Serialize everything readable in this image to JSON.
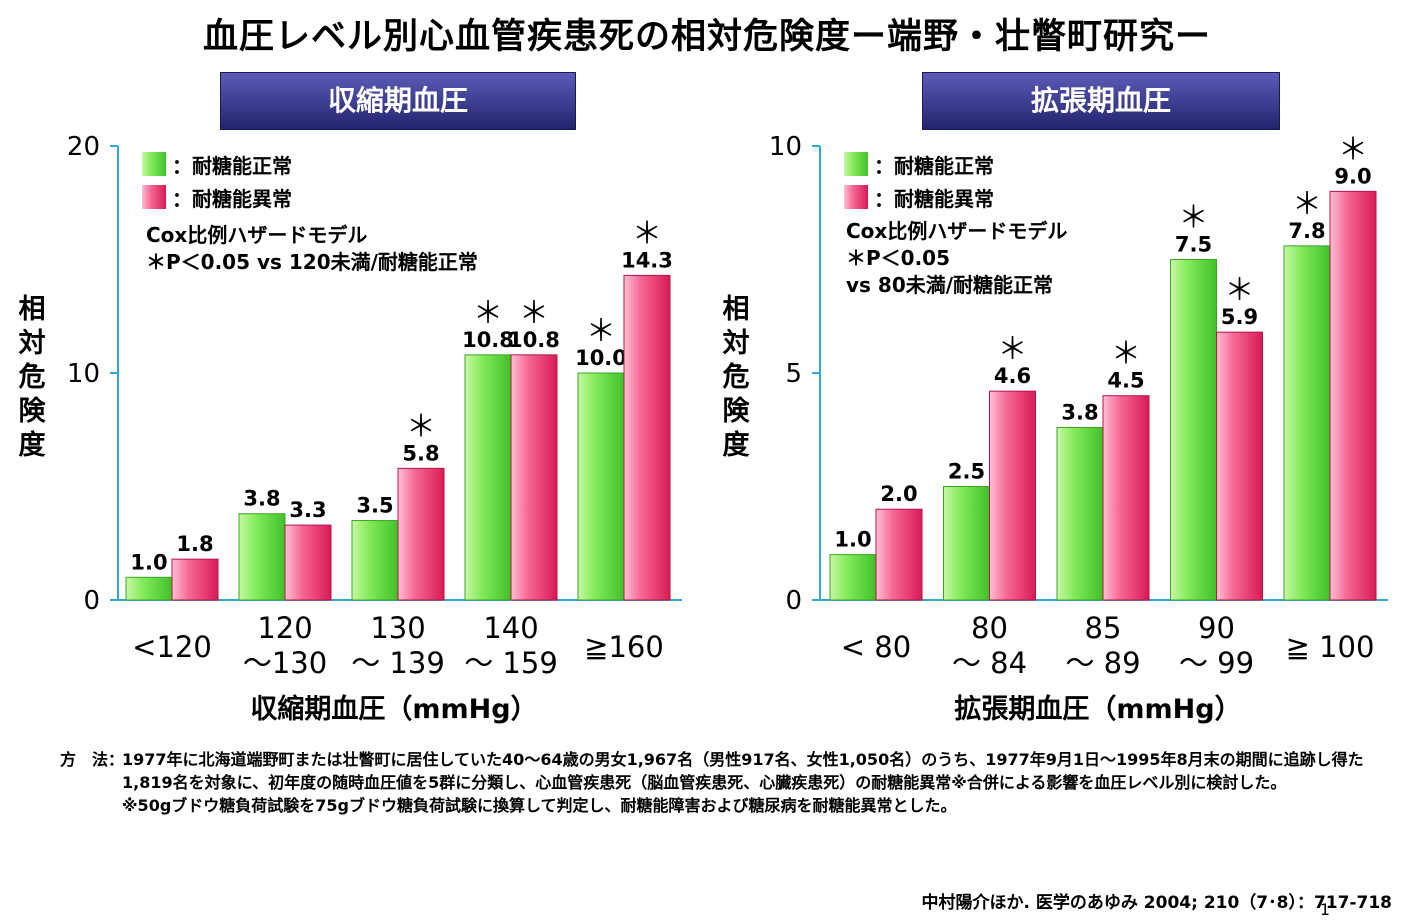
{
  "title": "血圧レベル別心血管疾患死の相対危険度ー端野・壮瞥町研究ー",
  "legend_common": {
    "normal": "：耐糖能正常",
    "abnormal": "：耐糖能異常"
  },
  "colors": {
    "normal": "#7de35a",
    "abnormal": "#f0517f",
    "axis": "#2fa8e0",
    "header": "#2e2f86"
  },
  "chart_data": [
    {
      "type": "bar",
      "header": "収縮期血圧",
      "xlabel": "収縮期血圧（mmHg）",
      "ylabel": "相対危険度",
      "ylim": [
        0,
        20
      ],
      "yticks": [
        "0",
        "10",
        "20"
      ],
      "note_lines": [
        "Cox比例ハザードモデル",
        "＊P＜0.05 vs 120未満/耐糖能正常"
      ],
      "categories": [
        [
          "<120"
        ],
        [
          "120",
          "～130"
        ],
        [
          "130",
          "～ 139"
        ],
        [
          "140",
          "～ 159"
        ],
        [
          "≧160"
        ]
      ],
      "series": [
        {
          "name": "耐糖能正常",
          "values": [
            1.0,
            3.8,
            3.5,
            10.8,
            10.0
          ],
          "labels": [
            "1.0",
            "3.8",
            "3.5",
            "10.8",
            "10.0"
          ],
          "sig": [
            false,
            false,
            false,
            true,
            true
          ]
        },
        {
          "name": "耐糖能異常",
          "values": [
            1.8,
            3.3,
            5.8,
            10.8,
            14.3
          ],
          "labels": [
            "1.8",
            "3.3",
            "5.8",
            "10.8",
            "14.3"
          ],
          "sig": [
            false,
            false,
            true,
            true,
            true
          ]
        }
      ]
    },
    {
      "type": "bar",
      "header": "拡張期血圧",
      "xlabel": "拡張期血圧（mmHg）",
      "ylabel": "相対危険度",
      "ylim": [
        0,
        10
      ],
      "yticks": [
        "0",
        "5",
        "10"
      ],
      "note_lines": [
        "Cox比例ハザードモデル",
        "＊P＜0.05",
        "vs 80未満/耐糖能正常"
      ],
      "categories": [
        [
          "< 80"
        ],
        [
          "80",
          "～ 84"
        ],
        [
          "85",
          "～ 89"
        ],
        [
          "90",
          "～ 99"
        ],
        [
          "≧ 100"
        ]
      ],
      "series": [
        {
          "name": "耐糖能正常",
          "values": [
            1.0,
            2.5,
            3.8,
            7.5,
            7.8
          ],
          "labels": [
            "1.0",
            "2.5",
            "3.8",
            "7.5",
            "7.8"
          ],
          "sig": [
            false,
            false,
            false,
            true,
            true
          ]
        },
        {
          "name": "耐糖能異常",
          "values": [
            2.0,
            4.6,
            4.5,
            5.9,
            9.0
          ],
          "labels": [
            "2.0",
            "4.6",
            "4.5",
            "5.9",
            "9.0"
          ],
          "sig": [
            false,
            true,
            true,
            true,
            true
          ]
        }
      ]
    }
  ],
  "method": {
    "label": "方　法：",
    "text": "1977年に北海道端野町または壮瞥町に居住していた40～64歳の男女1,967名（男性917名、女性1,050名）のうち、1977年9月1日～1995年8月末の期間に追跡し得た1,819名を対象に、初年度の随時血圧値を5群に分類し、心血管疾患死（脳血管疾患死、心臓疾患死）の耐糖能異常※合併による影響を血圧レベル別に検討した。",
    "note": "※50gブドウ糖負荷試験を75gブドウ糖負荷試験に換算して判定し、耐糖能障害および糖尿病を耐糖能異常とした。"
  },
  "citation": "中村陽介ほか. 医学のあゆみ 2004; 210（7･8）：717-718",
  "page_number": "1"
}
